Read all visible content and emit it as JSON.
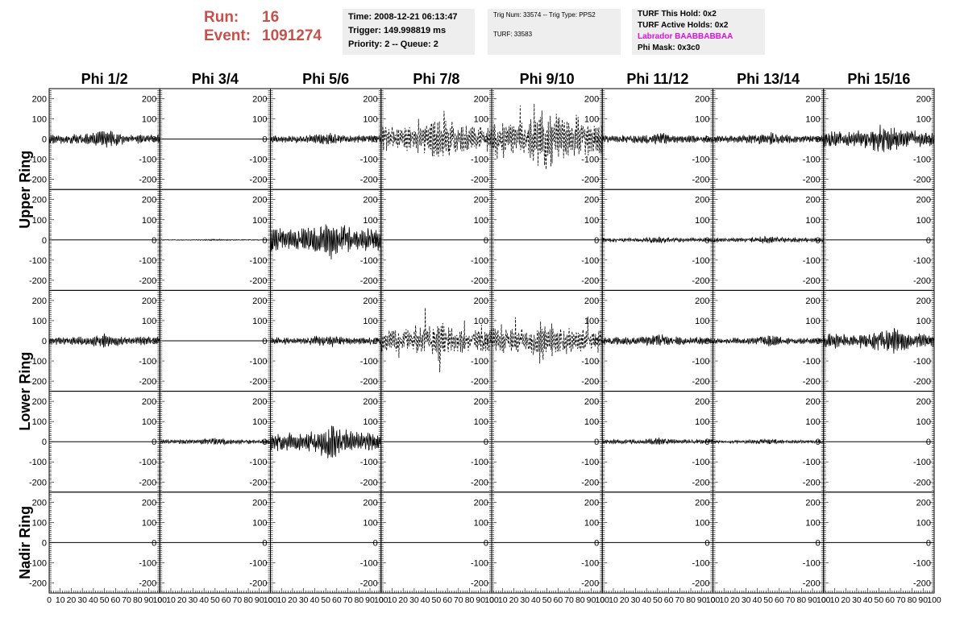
{
  "header": {
    "run_label": "Run:",
    "run_value": "16",
    "event_label": "Event:",
    "event_value": "1091274",
    "time": "Time: 2008-12-21 06:13:47",
    "trigger": "Trigger: 149.998819 ms",
    "priority": "Priority: 2 -- Queue: 2",
    "trig_num": "Trig Num: 33574 -- Trig Type: PPS2",
    "turf": "TURF: 33583",
    "turf_hold": "TURF This Hold: 0x2",
    "turf_active": "TURF Active Holds: 0x2",
    "labrador": "Labrador BAABBABBAA",
    "phi_mask": "Phi Mask: 0x3c0",
    "labrador_color": "#e010e0",
    "run_color": "#c8504c"
  },
  "chart_data": {
    "type": "line",
    "columns": [
      "Phi 1/2",
      "Phi 3/4",
      "Phi 5/6",
      "Phi 7/8",
      "Phi 9/10",
      "Phi 11/12",
      "Phi 13/14",
      "Phi 15/16"
    ],
    "ring_labels": [
      {
        "text": "Upper Ring",
        "rows": [
          0,
          1
        ]
      },
      {
        "text": "Lower Ring",
        "rows": [
          2,
          3
        ]
      },
      {
        "text": "Nadir Ring",
        "rows": [
          4
        ]
      }
    ],
    "xlim": [
      0,
      100
    ],
    "ylim": [
      -250,
      250
    ],
    "x_tick_labels": [
      "0",
      "10",
      "20",
      "30",
      "40",
      "50",
      "60",
      "70",
      "80",
      "90",
      "100"
    ],
    "y_tick_labels": [
      "200",
      "100",
      "0",
      "-100",
      "-200"
    ],
    "grid": false,
    "dashed_columns": [
      3,
      4
    ],
    "amplitudes": [
      [
        45,
        0,
        35,
        120,
        160,
        35,
        35,
        80
      ],
      [
        0,
        4,
        110,
        0,
        0,
        18,
        20,
        0
      ],
      [
        40,
        0,
        35,
        110,
        110,
        35,
        30,
        70
      ],
      [
        0,
        20,
        90,
        0,
        0,
        20,
        15,
        0
      ],
      [
        0,
        0,
        0,
        0,
        0,
        0,
        0,
        0
      ]
    ],
    "pulse_centers": [
      [
        50,
        50,
        50,
        55,
        50,
        50,
        50,
        55
      ],
      [
        50,
        50,
        55,
        50,
        50,
        50,
        50,
        50
      ],
      [
        50,
        50,
        50,
        50,
        50,
        50,
        50,
        60
      ],
      [
        50,
        50,
        55,
        50,
        50,
        50,
        50,
        50
      ],
      [
        50,
        50,
        50,
        50,
        50,
        50,
        50,
        50
      ]
    ]
  }
}
